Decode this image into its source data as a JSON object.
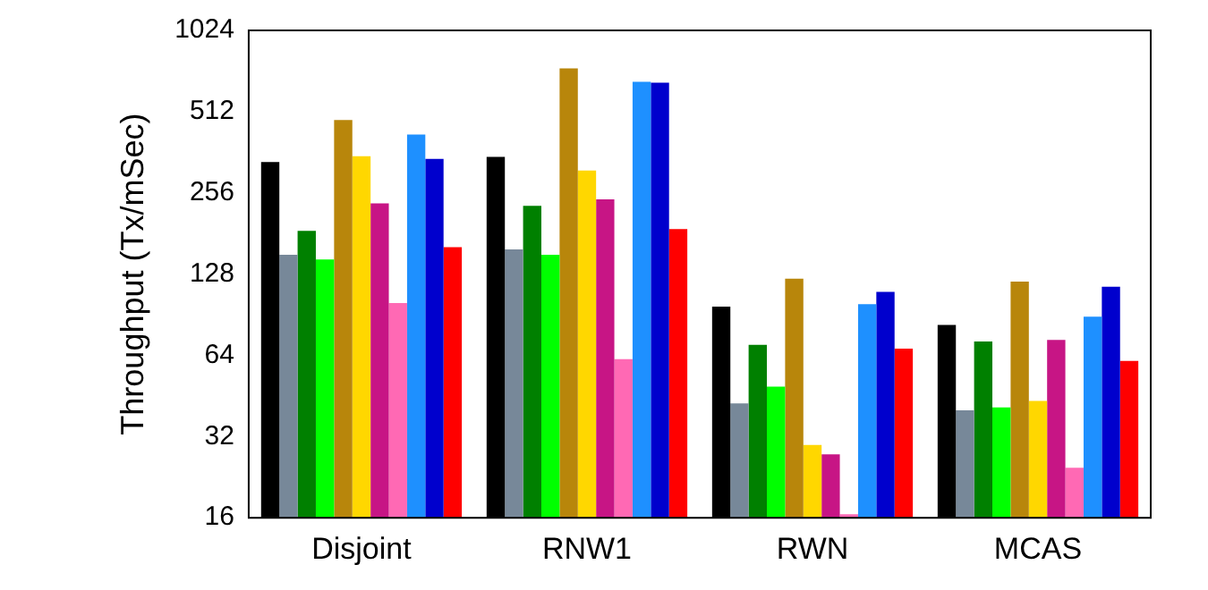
{
  "chart_data": {
    "type": "bar",
    "ylabel": "Throughput (Tx/mSec)",
    "log": "y",
    "ylim": [
      16,
      1024
    ],
    "yticks": [
      16,
      32,
      64,
      128,
      256,
      512,
      1024
    ],
    "grid": false,
    "legend": false,
    "categories": [
      "Disjoint",
      "RNW1",
      "RWN",
      "MCAS"
    ],
    "series": [
      {
        "color": "#000000",
        "values": [
          333,
          348,
          97,
          83
        ]
      },
      {
        "color": "#778899",
        "values": [
          151,
          158,
          42.5,
          40
        ]
      },
      {
        "color": "#008000",
        "values": [
          185,
          229,
          70,
          72
        ]
      },
      {
        "color": "#00ff00",
        "values": [
          145,
          151,
          49,
          41
        ]
      },
      {
        "color": "#b8860b",
        "values": [
          477,
          741,
          123,
          120
        ]
      },
      {
        "color": "#ffd700",
        "values": [
          350,
          310,
          29.8,
          43.4
        ]
      },
      {
        "color": "#c71585",
        "values": [
          234,
          242,
          27.5,
          73
        ]
      },
      {
        "color": "#ff69b4",
        "values": [
          100,
          62,
          16.5,
          24.5
        ]
      },
      {
        "color": "#1e90ff",
        "values": [
          421,
          660,
          99,
          89
        ]
      },
      {
        "color": "#0000cd",
        "values": [
          342,
          655,
          110,
          115
        ]
      },
      {
        "color": "#ff0000",
        "values": [
          161,
          188,
          67.8,
          61
        ]
      }
    ]
  }
}
